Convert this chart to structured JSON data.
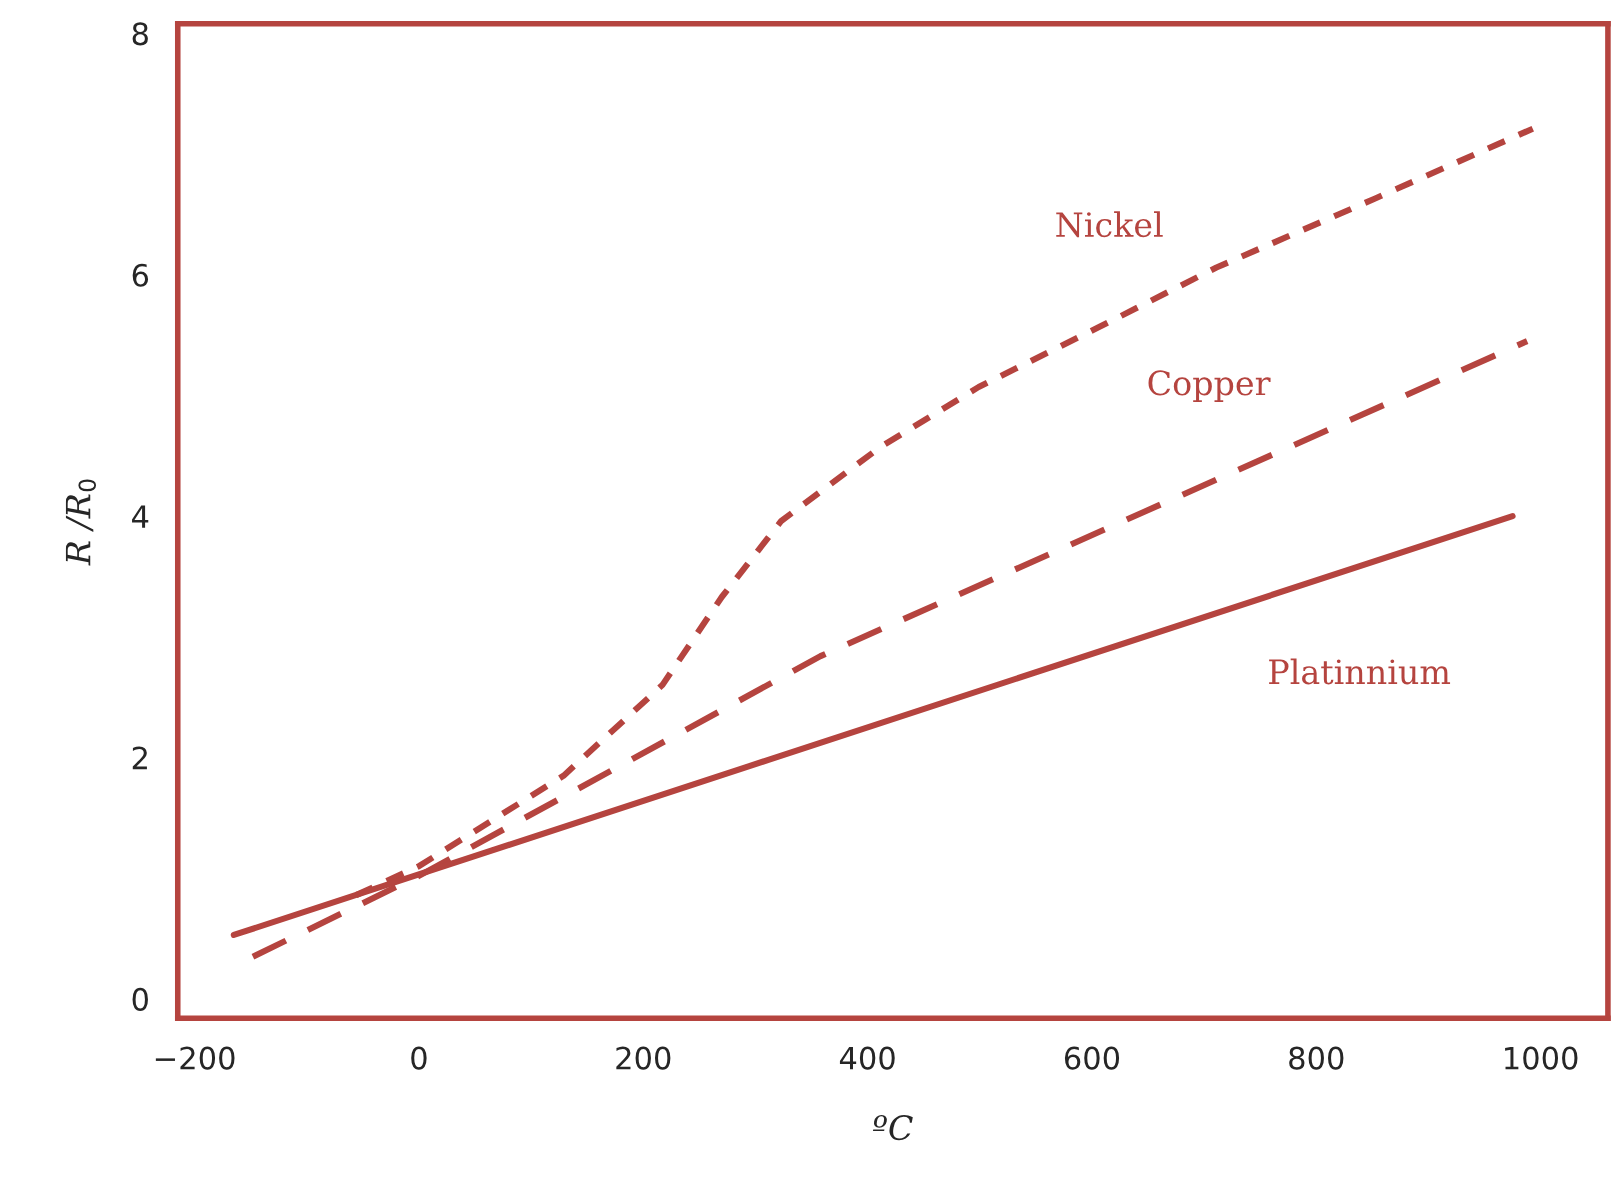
{
  "chart_data": {
    "type": "line",
    "xlabel": "ºC",
    "ylabel": "R /R$_{0}$",
    "xlim": [
      -215,
      1060
    ],
    "ylim": [
      -0.16,
      8.08
    ],
    "xticks": [
      {
        "value": -200,
        "label": "−200"
      },
      0,
      200,
      400,
      600,
      800,
      1000
    ],
    "yticks": [
      0,
      2,
      4,
      6,
      8
    ],
    "grid": false,
    "legend": false,
    "series": [
      {
        "name": "Nickel",
        "color": "#b5443f",
        "line_style": "dotted",
        "x": [
          -56,
          0,
          129,
          217,
          270,
          323,
          411,
          499,
          605,
          711,
          852,
          993
        ],
        "values": [
          0.86,
          1.1,
          1.85,
          2.6,
          3.33,
          3.96,
          4.57,
          5.07,
          5.56,
          6.06,
          6.63,
          7.21
        ]
      },
      {
        "name": "Copper",
        "color": "#b5443f",
        "line_style": "dashed",
        "x": [
          -148,
          0,
          358,
          988
        ],
        "values": [
          0.35,
          1.02,
          2.84,
          5.45
        ]
      },
      {
        "name": "Platinnium",
        "color": "#b5443f",
        "line_style": "solid",
        "x": [
          -165,
          975
        ],
        "values": [
          0.53,
          4.0
        ]
      }
    ]
  }
}
